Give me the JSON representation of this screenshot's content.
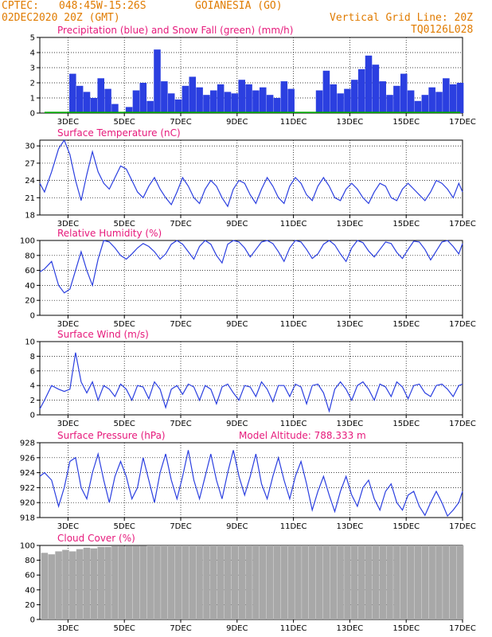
{
  "header": {
    "agency": "CPTEC:",
    "location": "048:45W-15:26S",
    "city": "GOIANESIA (GO)",
    "run": "02DEC2020 20Z (GMT)",
    "grid_note": "Vertical Grid Line: 20Z",
    "model_code": "TQ0126L028"
  },
  "colors": {
    "header": "#e07b00",
    "title": "#e6197b",
    "series": "#2b3fe0",
    "snow": "#00aa00",
    "cloud": "#a8a8a8"
  },
  "x_axis": {
    "tick_labels": [
      "3DEC",
      "5DEC",
      "7DEC",
      "9DEC",
      "11DEC",
      "13DEC",
      "15DEC",
      "17DEC"
    ],
    "tick_days": [
      3.833,
      5.833,
      7.833,
      9.833,
      11.833,
      13.833,
      15.833,
      17.833
    ],
    "range_days": [
      2.833,
      17.833
    ],
    "unit": "day of December 2020 (grid lines at 20Z)"
  },
  "chart_data": [
    {
      "type": "bar",
      "title": "Precipitation (blue) and Snow Fall (green) (mm/h)",
      "ylim": [
        0,
        5
      ],
      "yticks": [
        0,
        1,
        2,
        3,
        4,
        5
      ],
      "series": [
        {
          "name": "Precipitation",
          "color": "#2b3fe0",
          "x": [
            3.0,
            3.25,
            3.5,
            3.75,
            4.0,
            4.25,
            4.5,
            4.75,
            5.0,
            5.25,
            5.5,
            5.75,
            6.0,
            6.25,
            6.5,
            6.75,
            7.0,
            7.25,
            7.5,
            7.75,
            8.0,
            8.25,
            8.5,
            8.75,
            9.0,
            9.25,
            9.5,
            9.75,
            10.0,
            10.25,
            10.5,
            10.75,
            11.0,
            11.25,
            11.5,
            11.75,
            12.0,
            12.25,
            12.5,
            12.75,
            13.0,
            13.25,
            13.5,
            13.75,
            14.0,
            14.25,
            14.5,
            14.75,
            15.0,
            15.25,
            15.5,
            15.75,
            16.0,
            16.25,
            16.5,
            16.75,
            17.0,
            17.25,
            17.5,
            17.75
          ],
          "values": [
            0,
            0,
            0,
            0,
            2.6,
            1.8,
            1.4,
            1.0,
            2.3,
            1.6,
            0.6,
            0,
            0.4,
            1.5,
            2.0,
            0.8,
            4.2,
            2.1,
            1.3,
            0.9,
            1.8,
            2.4,
            1.7,
            1.2,
            1.5,
            1.9,
            1.4,
            1.3,
            2.2,
            1.9,
            1.5,
            1.7,
            1.2,
            1.0,
            2.1,
            1.6,
            0,
            0,
            0,
            1.5,
            2.8,
            1.9,
            1.3,
            1.6,
            2.2,
            2.9,
            3.8,
            3.2,
            2.1,
            1.2,
            1.8,
            2.6,
            1.5,
            0.8,
            1.2,
            1.7,
            1.4,
            2.3,
            1.9,
            2.0
          ]
        },
        {
          "name": "Snow Fall",
          "color": "#00aa00",
          "x": [
            3.0,
            17.75
          ],
          "values": [
            0,
            0
          ]
        }
      ]
    },
    {
      "type": "line",
      "title": "Surface Temperature (nC)",
      "ylim": [
        18,
        31
      ],
      "yticks": [
        18,
        21,
        24,
        27,
        30
      ],
      "series": [
        {
          "x": [
            2.833,
            3.0,
            3.25,
            3.5,
            3.7,
            3.9,
            4.1,
            4.3,
            4.5,
            4.7,
            4.9,
            5.1,
            5.3,
            5.5,
            5.7,
            5.9,
            6.1,
            6.3,
            6.5,
            6.7,
            6.9,
            7.1,
            7.3,
            7.5,
            7.7,
            7.9,
            8.1,
            8.3,
            8.5,
            8.7,
            8.9,
            9.1,
            9.3,
            9.5,
            9.7,
            9.9,
            10.1,
            10.3,
            10.5,
            10.7,
            10.9,
            11.1,
            11.3,
            11.5,
            11.7,
            11.9,
            12.1,
            12.3,
            12.5,
            12.7,
            12.9,
            13.1,
            13.3,
            13.5,
            13.7,
            13.9,
            14.1,
            14.3,
            14.5,
            14.7,
            14.9,
            15.1,
            15.3,
            15.5,
            15.7,
            15.9,
            16.1,
            16.3,
            16.5,
            16.7,
            16.9,
            17.1,
            17.3,
            17.5,
            17.7,
            17.833
          ],
          "values": [
            23.5,
            22.0,
            25.5,
            29.5,
            31.0,
            28.5,
            24.0,
            20.5,
            25.0,
            29.0,
            25.5,
            23.5,
            22.5,
            24.5,
            26.5,
            26.0,
            24.0,
            22.0,
            21.0,
            23.0,
            24.5,
            22.5,
            21.0,
            19.8,
            22.0,
            24.5,
            23.0,
            21.0,
            20.0,
            22.5,
            24.0,
            23.0,
            21.0,
            19.5,
            22.5,
            24.0,
            23.5,
            21.5,
            20.0,
            22.5,
            24.5,
            23.0,
            21.0,
            20.0,
            23.0,
            24.5,
            23.5,
            21.5,
            20.5,
            23.0,
            24.5,
            23.0,
            21.0,
            20.5,
            22.5,
            23.5,
            22.5,
            21.0,
            20.0,
            22.0,
            23.5,
            23.0,
            21.0,
            20.5,
            22.5,
            23.5,
            22.5,
            21.5,
            20.5,
            22.0,
            24.0,
            23.5,
            22.5,
            21.0,
            23.5,
            22.0
          ]
        }
      ]
    },
    {
      "type": "line",
      "title": "Relative Humidity (%)",
      "ylim": [
        0,
        100
      ],
      "yticks": [
        0,
        20,
        40,
        60,
        80,
        100
      ],
      "series": [
        {
          "x": [
            2.833,
            3.0,
            3.25,
            3.5,
            3.7,
            3.9,
            4.1,
            4.3,
            4.5,
            4.7,
            4.9,
            5.1,
            5.3,
            5.5,
            5.7,
            5.9,
            6.1,
            6.3,
            6.5,
            6.7,
            6.9,
            7.1,
            7.3,
            7.5,
            7.7,
            7.9,
            8.1,
            8.3,
            8.5,
            8.7,
            8.9,
            9.1,
            9.3,
            9.5,
            9.7,
            9.9,
            10.1,
            10.3,
            10.5,
            10.7,
            10.9,
            11.1,
            11.3,
            11.5,
            11.7,
            11.9,
            12.1,
            12.3,
            12.5,
            12.7,
            12.9,
            13.1,
            13.3,
            13.5,
            13.7,
            13.9,
            14.1,
            14.3,
            14.5,
            14.7,
            14.9,
            15.1,
            15.3,
            15.5,
            15.7,
            15.9,
            16.1,
            16.3,
            16.5,
            16.7,
            16.9,
            17.1,
            17.3,
            17.5,
            17.7,
            17.833
          ],
          "values": [
            58,
            62,
            72,
            40,
            30,
            35,
            60,
            85,
            60,
            40,
            75,
            100,
            98,
            90,
            80,
            75,
            82,
            90,
            96,
            92,
            85,
            75,
            82,
            95,
            100,
            95,
            85,
            75,
            92,
            100,
            95,
            80,
            70,
            95,
            100,
            98,
            90,
            78,
            88,
            98,
            100,
            96,
            85,
            72,
            90,
            100,
            98,
            88,
            76,
            82,
            95,
            100,
            94,
            82,
            72,
            90,
            100,
            97,
            86,
            78,
            88,
            98,
            96,
            84,
            76,
            88,
            99,
            98,
            88,
            74,
            86,
            98,
            100,
            92,
            82,
            96
          ]
        }
      ]
    },
    {
      "type": "line",
      "title": "Surface Wind (m/s)",
      "ylim": [
        0,
        10
      ],
      "yticks": [
        0,
        2,
        4,
        6,
        8,
        10
      ],
      "series": [
        {
          "x": [
            2.833,
            3.0,
            3.25,
            3.5,
            3.7,
            3.9,
            4.1,
            4.3,
            4.5,
            4.7,
            4.9,
            5.1,
            5.3,
            5.5,
            5.7,
            5.9,
            6.1,
            6.3,
            6.5,
            6.7,
            6.9,
            7.1,
            7.3,
            7.5,
            7.7,
            7.9,
            8.1,
            8.3,
            8.5,
            8.7,
            8.9,
            9.1,
            9.3,
            9.5,
            9.7,
            9.9,
            10.1,
            10.3,
            10.5,
            10.7,
            10.9,
            11.1,
            11.3,
            11.5,
            11.7,
            11.9,
            12.1,
            12.3,
            12.5,
            12.7,
            12.9,
            13.1,
            13.3,
            13.5,
            13.7,
            13.9,
            14.1,
            14.3,
            14.5,
            14.7,
            14.9,
            15.1,
            15.3,
            15.5,
            15.7,
            15.9,
            16.1,
            16.3,
            16.5,
            16.7,
            16.9,
            17.1,
            17.3,
            17.5,
            17.7,
            17.833
          ],
          "values": [
            0.8,
            2.0,
            4.0,
            3.5,
            3.2,
            3.5,
            8.5,
            4.5,
            3.0,
            4.5,
            2.0,
            4.0,
            3.5,
            2.5,
            4.2,
            3.5,
            2.0,
            4.0,
            3.8,
            2.2,
            4.5,
            3.5,
            1.0,
            3.5,
            4.0,
            2.8,
            4.2,
            3.8,
            2.0,
            4.0,
            3.5,
            1.5,
            3.8,
            4.2,
            3.0,
            2.0,
            4.0,
            3.8,
            2.5,
            4.5,
            3.5,
            1.8,
            4.0,
            4.0,
            2.5,
            4.2,
            3.8,
            1.5,
            4.0,
            4.2,
            3.0,
            0.5,
            3.5,
            4.5,
            3.5,
            2.0,
            4.0,
            4.5,
            3.5,
            2.0,
            4.2,
            3.8,
            2.5,
            4.5,
            3.8,
            2.2,
            4.0,
            4.2,
            3.0,
            2.5,
            4.0,
            4.2,
            3.5,
            2.5,
            4.0,
            4.2
          ]
        }
      ]
    },
    {
      "type": "line",
      "title": "Surface Pressure (hPa)",
      "annotation": "Model Altitude: 788.333 m",
      "ylim": [
        918,
        928
      ],
      "yticks": [
        918,
        920,
        922,
        924,
        926,
        928
      ],
      "series": [
        {
          "x": [
            2.833,
            3.0,
            3.25,
            3.5,
            3.7,
            3.9,
            4.1,
            4.3,
            4.5,
            4.7,
            4.9,
            5.1,
            5.3,
            5.5,
            5.7,
            5.9,
            6.1,
            6.3,
            6.5,
            6.7,
            6.9,
            7.1,
            7.3,
            7.5,
            7.7,
            7.9,
            8.1,
            8.3,
            8.5,
            8.7,
            8.9,
            9.1,
            9.3,
            9.5,
            9.7,
            9.9,
            10.1,
            10.3,
            10.5,
            10.7,
            10.9,
            11.1,
            11.3,
            11.5,
            11.7,
            11.9,
            12.1,
            12.3,
            12.5,
            12.7,
            12.9,
            13.1,
            13.3,
            13.5,
            13.7,
            13.9,
            14.1,
            14.3,
            14.5,
            14.7,
            14.9,
            15.1,
            15.3,
            15.5,
            15.7,
            15.9,
            16.1,
            16.3,
            16.5,
            16.7,
            16.9,
            17.1,
            17.3,
            17.5,
            17.7,
            17.833
          ],
          "values": [
            923.5,
            924.0,
            923.0,
            919.5,
            922.0,
            925.5,
            926.0,
            922.0,
            920.5,
            924.0,
            926.5,
            923.0,
            920.0,
            923.5,
            925.5,
            923.5,
            920.5,
            922.0,
            926.0,
            923.0,
            920.0,
            924.0,
            926.5,
            923.0,
            920.5,
            923.5,
            927.0,
            923.0,
            920.5,
            923.5,
            926.5,
            923.0,
            920.5,
            924.0,
            927.0,
            923.5,
            921.0,
            923.5,
            926.5,
            922.5,
            920.5,
            923.5,
            926.0,
            923.0,
            920.5,
            923.5,
            925.5,
            922.5,
            919.0,
            921.5,
            923.5,
            921.0,
            918.8,
            921.5,
            923.5,
            921.0,
            919.5,
            922.0,
            923.0,
            920.5,
            919.0,
            921.5,
            922.5,
            920.0,
            919.0,
            921.0,
            921.5,
            919.5,
            918.3,
            920.0,
            921.5,
            920.0,
            918.2,
            919.0,
            920.0,
            921.5
          ]
        }
      ]
    },
    {
      "type": "bar",
      "title": "Cloud Cover (%)",
      "ylim": [
        0,
        100
      ],
      "yticks": [
        0,
        20,
        40,
        60,
        80,
        100
      ],
      "series": [
        {
          "color": "#a8a8a8",
          "x": [
            3.0,
            3.25,
            3.5,
            3.75,
            4.0,
            4.25,
            4.5,
            4.75,
            5.0,
            5.25,
            5.5,
            5.75,
            6.0,
            6.25,
            6.5,
            6.75,
            7.0,
            7.25,
            7.5,
            7.75,
            8.0,
            8.25,
            8.5,
            8.75,
            9.0,
            9.25,
            9.5,
            9.75,
            10.0,
            10.25,
            10.5,
            10.75,
            11.0,
            11.25,
            11.5,
            11.75,
            12.0,
            12.25,
            12.5,
            12.75,
            13.0,
            13.25,
            13.5,
            13.75,
            14.0,
            14.25,
            14.5,
            14.75,
            15.0,
            15.25,
            15.5,
            15.75,
            16.0,
            16.25,
            16.5,
            16.75,
            17.0,
            17.25,
            17.5,
            17.75
          ],
          "values": [
            90,
            88,
            92,
            94,
            92,
            95,
            97,
            96,
            98,
            98,
            99,
            99,
            99,
            99,
            99,
            100,
            100,
            100,
            100,
            100,
            100,
            100,
            100,
            100,
            100,
            100,
            100,
            100,
            100,
            100,
            100,
            100,
            100,
            100,
            100,
            100,
            100,
            100,
            100,
            100,
            100,
            100,
            100,
            100,
            100,
            100,
            100,
            100,
            100,
            100,
            100,
            100,
            100,
            100,
            100,
            100,
            100,
            100,
            100,
            100
          ]
        }
      ]
    }
  ]
}
